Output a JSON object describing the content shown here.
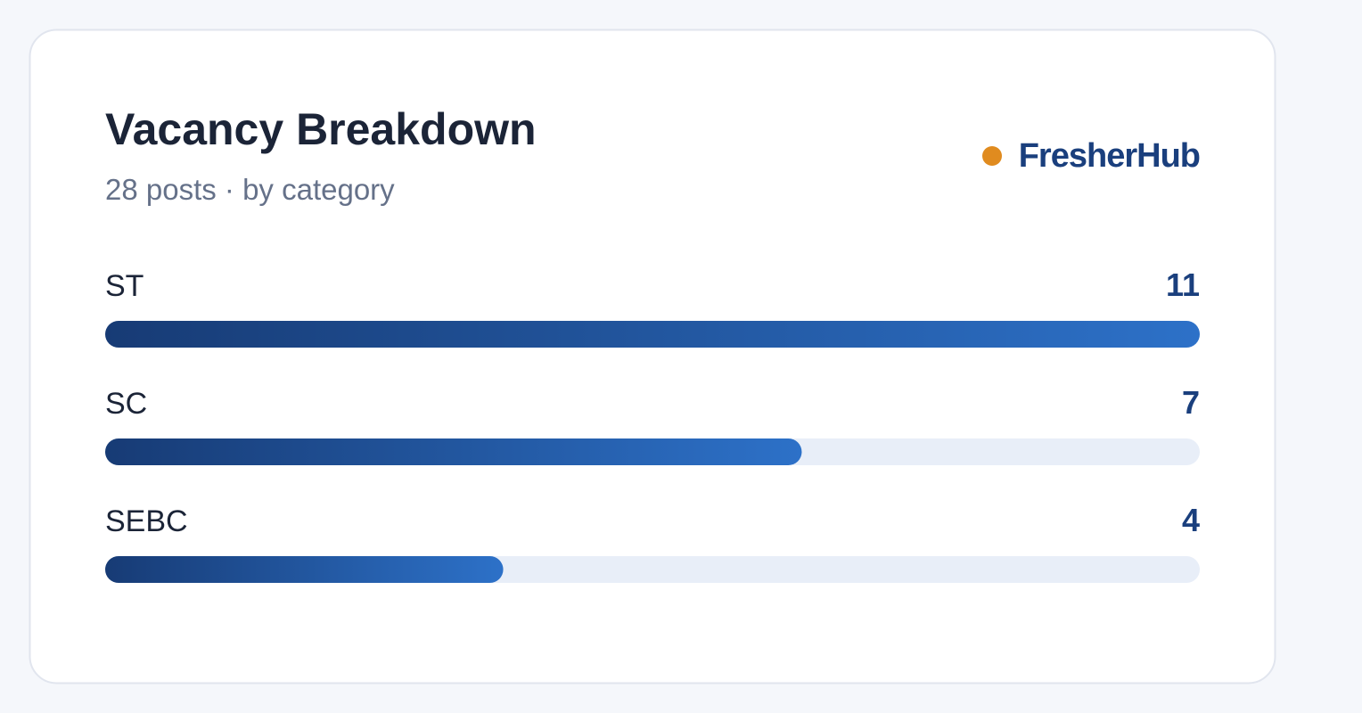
{
  "chart_data": {
    "type": "bar",
    "orientation": "horizontal",
    "title": "Vacancy Breakdown",
    "subtitle": "28 posts · by category",
    "brand": "FresherHub",
    "categories": [
      "ST",
      "SC",
      "SEBC"
    ],
    "values": [
      11,
      7,
      4
    ],
    "xlim": [
      0,
      11
    ]
  }
}
